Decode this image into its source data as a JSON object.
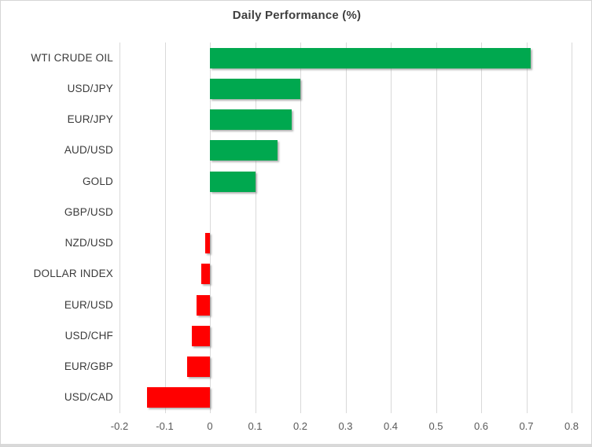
{
  "chart_data": {
    "type": "bar",
    "orientation": "horizontal",
    "title": "Daily Performance (%)",
    "categories": [
      "WTI CRUDE OIL",
      "USD/JPY",
      "EUR/JPY",
      "AUD/USD",
      "GOLD",
      "GBP/USD",
      "NZD/USD",
      "DOLLAR INDEX",
      "EUR/USD",
      "USD/CHF",
      "EUR/GBP",
      "USD/CAD"
    ],
    "values": [
      0.71,
      0.2,
      0.18,
      0.15,
      0.1,
      0.0,
      -0.01,
      -0.02,
      -0.03,
      -0.04,
      -0.05,
      -0.14
    ],
    "xlabel": "",
    "ylabel": "",
    "xlim": [
      -0.2,
      0.8
    ],
    "xticks": [
      -0.2,
      -0.1,
      0,
      0.1,
      0.2,
      0.3,
      0.4,
      0.5,
      0.6,
      0.7,
      0.8
    ],
    "xtick_labels": [
      "-0.2",
      "-0.1",
      "0",
      "0.1",
      "0.2",
      "0.3",
      "0.4",
      "0.5",
      "0.6",
      "0.7",
      "0.8"
    ],
    "grid": true,
    "legend": false,
    "colors": {
      "positive_bar": "#00A84F",
      "negative_bar": "#FF0000",
      "gridline": "#D9D9D9",
      "title_text": "#3F3F3F",
      "category_text": "#3A3A3A",
      "tick_text": "#595959"
    }
  }
}
